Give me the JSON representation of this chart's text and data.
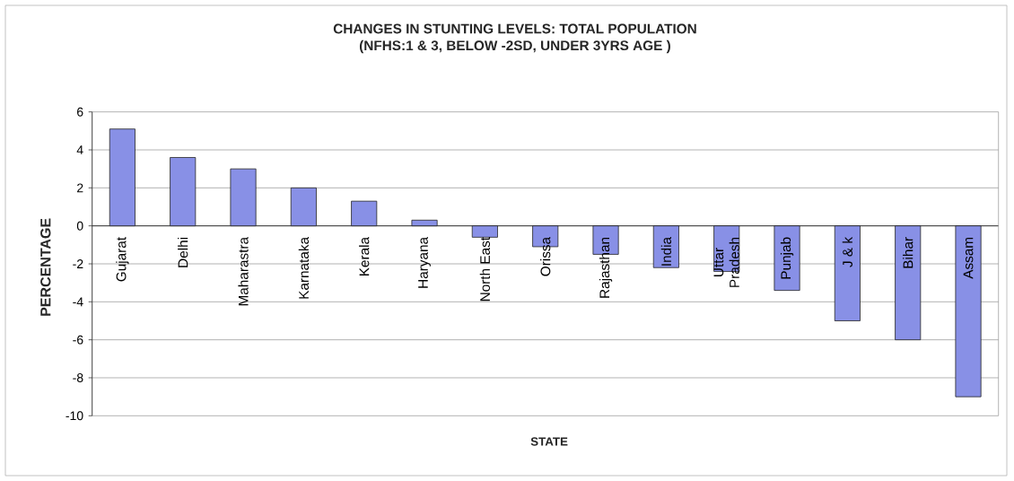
{
  "chart_data": {
    "type": "bar",
    "title": "CHANGES IN STUNTING LEVELS: TOTAL POPULATION",
    "subtitle": "(NFHS:1 & 3, BELOW -2SD, UNDER 3YRS AGE )",
    "xlabel": "STATE",
    "ylabel": "PERCENTAGE",
    "categories": [
      "Gujarat",
      "Delhi",
      "Maharastra",
      "Karnataka",
      "Kerala",
      "Haryana",
      "North East",
      "Orissa",
      "Rajasthan",
      "India",
      "Uttar Pradesh",
      "Punjab",
      "J & k",
      "Bihar",
      "Assam"
    ],
    "values": [
      5.1,
      3.6,
      3.0,
      2.0,
      1.3,
      0.3,
      -0.6,
      -1.1,
      -1.5,
      -2.2,
      -2.4,
      -3.4,
      -5.0,
      -6.0,
      -9.0
    ],
    "color": "#8890e6",
    "ylim": [
      -10,
      6
    ],
    "yticks": [
      -10,
      -8,
      -6,
      -4,
      -2,
      0,
      2,
      4,
      6
    ],
    "grid": "y"
  }
}
